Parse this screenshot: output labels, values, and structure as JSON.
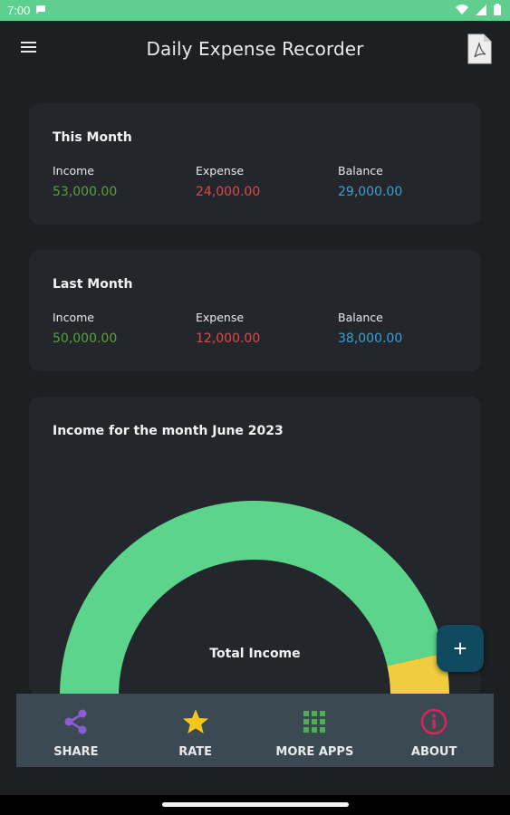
{
  "status_bar": {
    "time": "7:00"
  },
  "app_bar": {
    "title": "Daily Expense Recorder"
  },
  "this_month": {
    "title": "This Month",
    "income_label": "Income",
    "income_value": "53,000.00",
    "expense_label": "Expense",
    "expense_value": "24,000.00",
    "balance_label": "Balance",
    "balance_value": "29,000.00"
  },
  "last_month": {
    "title": "Last Month",
    "income_label": "Income",
    "income_value": "50,000.00",
    "expense_label": "Expense",
    "expense_value": "12,000.00",
    "balance_label": "Balance",
    "balance_value": "38,000.00"
  },
  "colors": {
    "income": "#5c9e3f",
    "expense": "#e0474c",
    "balance": "#3aa0d6",
    "gauge_main": "#5cd48b",
    "gauge_accent": "#f2cc3f"
  },
  "chart_card": {
    "title": "Income for the month June 2023",
    "center_label": "Total Income"
  },
  "chart_data": {
    "type": "pie",
    "title": "Income for the month June 2023",
    "center_label": "Total Income",
    "slices": [
      {
        "color": "#5cd48b",
        "value": 0.93
      },
      {
        "color": "#f2cc3f",
        "value": 0.07
      }
    ]
  },
  "fab": {
    "label": "+"
  },
  "bottom_nav": {
    "items": [
      {
        "label": "SHARE",
        "icon": "share-icon"
      },
      {
        "label": "RATE",
        "icon": "star-icon"
      },
      {
        "label": "MORE APPS",
        "icon": "grid-icon"
      },
      {
        "label": "ABOUT",
        "icon": "info-icon"
      }
    ]
  }
}
